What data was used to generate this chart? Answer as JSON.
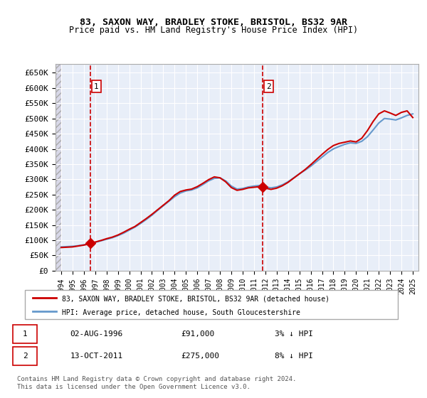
{
  "title1": "83, SAXON WAY, BRADLEY STOKE, BRISTOL, BS32 9AR",
  "title2": "Price paid vs. HM Land Registry's House Price Index (HPI)",
  "legend_line1": "83, SAXON WAY, BRADLEY STOKE, BRISTOL, BS32 9AR (detached house)",
  "legend_line2": "HPI: Average price, detached house, South Gloucestershire",
  "footnote": "Contains HM Land Registry data © Crown copyright and database right 2024.\nThis data is licensed under the Open Government Licence v3.0.",
  "transaction1_label": "1",
  "transaction1_date": "02-AUG-1996",
  "transaction1_price": "£91,000",
  "transaction1_hpi": "3% ↓ HPI",
  "transaction2_label": "2",
  "transaction2_date": "13-OCT-2011",
  "transaction2_price": "£275,000",
  "transaction2_hpi": "8% ↓ HPI",
  "sale1_x": 1996.58,
  "sale1_y": 91000,
  "sale2_x": 2011.78,
  "sale2_y": 275000,
  "ylim": [
    0,
    680000
  ],
  "xlim_start": 1993.5,
  "xlim_end": 2025.5,
  "hpi_color": "#6699cc",
  "price_color": "#cc0000",
  "dashed_line_color": "#cc0000",
  "background_plot": "#e8eef8",
  "background_hatch": "#d8d8e8",
  "grid_color": "#ffffff",
  "hpi_data_x": [
    1994,
    1994.5,
    1995,
    1995.5,
    1996,
    1996.5,
    1997,
    1997.5,
    1998,
    1998.5,
    1999,
    1999.5,
    2000,
    2000.5,
    2001,
    2001.5,
    2002,
    2002.5,
    2003,
    2003.5,
    2004,
    2004.5,
    2005,
    2005.5,
    2006,
    2006.5,
    2007,
    2007.5,
    2008,
    2008.5,
    2009,
    2009.5,
    2010,
    2010.5,
    2011,
    2011.5,
    2012,
    2012.5,
    2013,
    2013.5,
    2014,
    2014.5,
    2015,
    2015.5,
    2016,
    2016.5,
    2017,
    2017.5,
    2018,
    2018.5,
    2019,
    2019.5,
    2020,
    2020.5,
    2021,
    2021.5,
    2022,
    2022.5,
    2023,
    2023.5,
    2024,
    2024.5,
    2025
  ],
  "hpi_data_y": [
    78000,
    79000,
    80000,
    82000,
    85000,
    88000,
    93000,
    98000,
    103000,
    108000,
    115000,
    123000,
    133000,
    143000,
    155000,
    168000,
    182000,
    198000,
    213000,
    228000,
    243000,
    255000,
    262000,
    265000,
    272000,
    283000,
    295000,
    303000,
    305000,
    295000,
    278000,
    268000,
    270000,
    275000,
    278000,
    280000,
    275000,
    272000,
    275000,
    282000,
    292000,
    305000,
    318000,
    330000,
    343000,
    358000,
    373000,
    388000,
    400000,
    408000,
    415000,
    420000,
    418000,
    425000,
    440000,
    462000,
    485000,
    500000,
    498000,
    495000,
    502000,
    510000,
    515000
  ],
  "price_data_x": [
    1994,
    1994.5,
    1995,
    1995.5,
    1996,
    1996.5,
    1997,
    1997.5,
    1998,
    1998.5,
    1999,
    1999.5,
    2000,
    2000.5,
    2001,
    2001.5,
    2002,
    2002.5,
    2003,
    2003.5,
    2004,
    2004.5,
    2005,
    2005.5,
    2006,
    2006.5,
    2007,
    2007.5,
    2008,
    2008.5,
    2009,
    2009.5,
    2010,
    2010.5,
    2011,
    2011.5,
    2012,
    2012.5,
    2013,
    2013.5,
    2014,
    2014.5,
    2015,
    2015.5,
    2016,
    2016.5,
    2017,
    2017.5,
    2018,
    2018.5,
    2019,
    2019.5,
    2020,
    2020.5,
    2021,
    2021.5,
    2022,
    2022.5,
    2023,
    2023.5,
    2024,
    2024.5,
    2025
  ],
  "price_data_y": [
    76000,
    77000,
    78000,
    81000,
    84000,
    88000,
    94000,
    99000,
    105000,
    110000,
    117000,
    126000,
    136000,
    145000,
    158000,
    171000,
    185000,
    200000,
    215000,
    230000,
    248000,
    260000,
    265000,
    268000,
    276000,
    287000,
    299000,
    308000,
    305000,
    292000,
    273000,
    264000,
    267000,
    272000,
    274000,
    276000,
    271000,
    267000,
    271000,
    279000,
    290000,
    304000,
    318000,
    332000,
    348000,
    365000,
    382000,
    398000,
    411000,
    418000,
    422000,
    426000,
    423000,
    435000,
    460000,
    490000,
    515000,
    525000,
    518000,
    510000,
    520000,
    525000,
    503000
  ],
  "yticks": [
    0,
    50000,
    100000,
    150000,
    200000,
    250000,
    300000,
    350000,
    400000,
    450000,
    500000,
    550000,
    600000,
    650000
  ],
  "xticks": [
    1994,
    1995,
    1996,
    1997,
    1998,
    1999,
    2000,
    2001,
    2002,
    2003,
    2004,
    2005,
    2006,
    2007,
    2008,
    2009,
    2010,
    2011,
    2012,
    2013,
    2014,
    2015,
    2016,
    2017,
    2018,
    2019,
    2020,
    2021,
    2022,
    2023,
    2024,
    2025
  ]
}
